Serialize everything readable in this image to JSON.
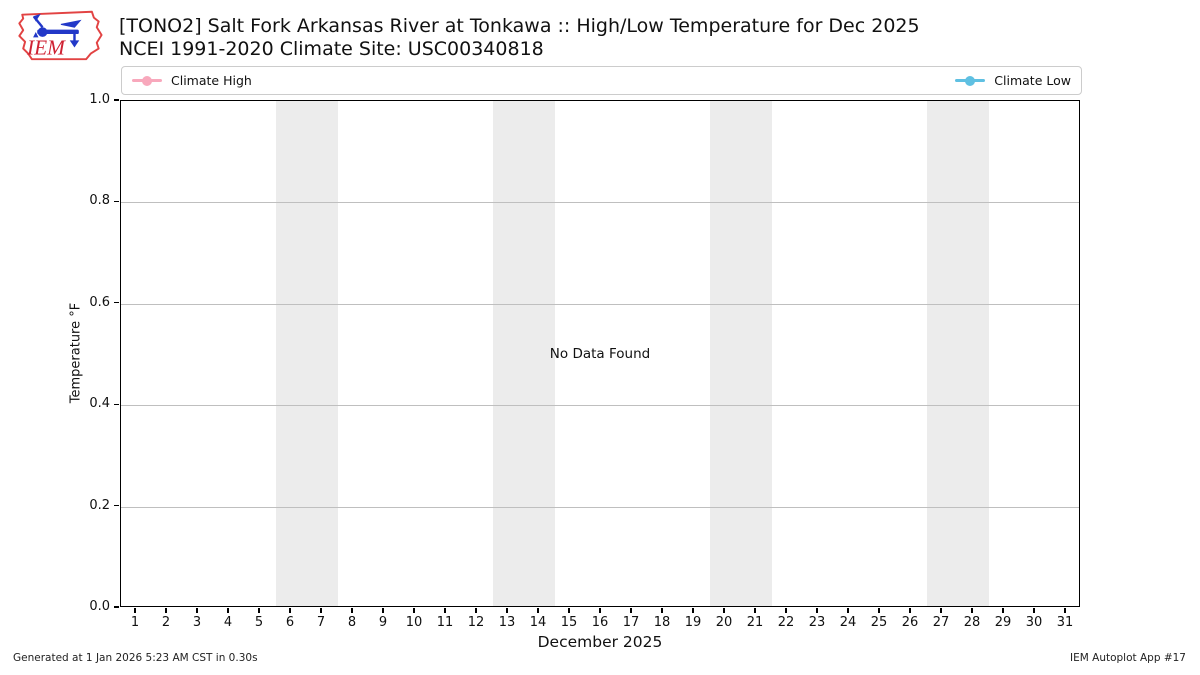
{
  "header": {
    "title_line1": "[TONO2] Salt Fork Arkansas River at Tonkawa :: High/Low Temperature for Dec 2025",
    "title_line2": "NCEI 1991-2020 Climate Site: USC00340818"
  },
  "logo": {
    "text": "IEM",
    "outline_color": "#e24343",
    "vane_color": "#2238c8",
    "text_color": "#cf2233"
  },
  "legend": {
    "items": [
      {
        "label": "Climate High",
        "color": "#f8a8bc"
      },
      {
        "label": "Climate Low",
        "color": "#5fc0e2"
      }
    ]
  },
  "chart_data": {
    "type": "line",
    "title": "[TONO2] Salt Fork Arkansas River at Tonkawa :: High/Low Temperature for Dec 2025",
    "subtitle": "NCEI 1991-2020 Climate Site: USC00340818",
    "xlabel": "December 2025",
    "ylabel": "Temperature °F",
    "xlim": [
      0.5,
      31.5
    ],
    "ylim": [
      0.0,
      1.0
    ],
    "x_ticks": [
      1,
      2,
      3,
      4,
      5,
      6,
      7,
      8,
      9,
      10,
      11,
      12,
      13,
      14,
      15,
      16,
      17,
      18,
      19,
      20,
      21,
      22,
      23,
      24,
      25,
      26,
      27,
      28,
      29,
      30,
      31
    ],
    "y_ticks": [
      1.0,
      0.8,
      0.6,
      0.4,
      0.2,
      0.0
    ],
    "y_tick_labels": [
      "1.0",
      "0.8",
      "0.6",
      "0.4",
      "0.2",
      "0.0"
    ],
    "grid": true,
    "legend_position": "top",
    "series": [
      {
        "name": "Climate High",
        "color": "#f8a8bc",
        "x": [],
        "values": []
      },
      {
        "name": "Climate Low",
        "color": "#5fc0e2",
        "x": [],
        "values": []
      }
    ],
    "no_data_text": "No Data Found",
    "weekend_shading_day_ranges": [
      [
        5.5,
        7.5
      ],
      [
        12.5,
        14.5
      ],
      [
        19.5,
        21.5
      ],
      [
        26.5,
        28.5
      ]
    ],
    "shading_color": "#ececec"
  },
  "footer": {
    "left": "Generated at 1 Jan 2026 5:23 AM CST in 0.30s",
    "right": "IEM Autoplot App #17"
  }
}
